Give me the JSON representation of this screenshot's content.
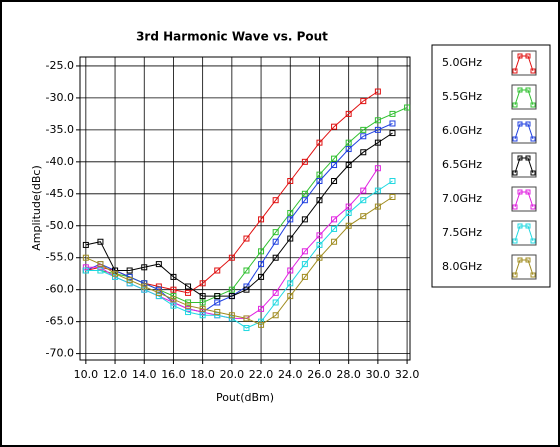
{
  "chart_data": {
    "type": "line",
    "title": "3rd Harmonic Wave vs. Pout",
    "x_label": "Pout(dBm)",
    "y_label": "Amplitude(dBc)",
    "x": [
      10,
      11,
      12,
      13,
      14,
      15,
      16,
      17,
      18,
      19,
      20,
      21,
      22,
      23,
      24,
      25,
      26,
      27,
      28,
      29,
      30,
      31,
      32
    ],
    "series": [
      {
        "name": "5.0GHz",
        "color": "#e01010",
        "values": [
          -57,
          -56.5,
          -57,
          -58,
          -59,
          -59.5,
          -60,
          -60.5,
          -59,
          -57,
          -55,
          -52,
          -49,
          -46,
          -43,
          -40,
          -37,
          -34.5,
          -32.5,
          -30.5,
          -29,
          null,
          null
        ]
      },
      {
        "name": "5.5GHz",
        "color": "#30c030",
        "values": [
          -57,
          -57,
          -57.5,
          -58,
          -59,
          -60,
          -61,
          -62,
          -62,
          -61,
          -60,
          -57,
          -54,
          -51,
          -48,
          -45,
          -42,
          -39.5,
          -37,
          -35,
          -33.5,
          -32.5,
          -31.5
        ]
      },
      {
        "name": "6.0GHz",
        "color": "#2040e0",
        "values": [
          -57,
          -56,
          -57,
          -58,
          -59,
          -60,
          -62,
          -63,
          -63.5,
          -62,
          -61,
          -59.5,
          -56,
          -52.5,
          -49,
          -46,
          -43,
          -40.5,
          -38,
          -36,
          -35,
          -34,
          null
        ]
      },
      {
        "name": "6.5GHz",
        "color": "#000000",
        "values": [
          -53,
          -52.5,
          -57,
          -57,
          -56.5,
          -56,
          -58,
          -59.5,
          -61,
          -61,
          -61,
          -60,
          -58,
          -55,
          -52,
          -49,
          -46,
          -43,
          -40.5,
          -38.5,
          -37,
          -35.5,
          null
        ]
      },
      {
        "name": "7.0GHz",
        "color": "#e020e0",
        "values": [
          -56.5,
          -56.5,
          -58,
          -59,
          -60,
          -61,
          -62,
          -63,
          -63.5,
          -64,
          -64.5,
          -64.5,
          -63,
          -60.5,
          -57,
          -54,
          -51.5,
          -49,
          -47,
          -44.5,
          -41,
          null,
          null
        ]
      },
      {
        "name": "7.5GHz",
        "color": "#20d8e0",
        "values": [
          -57,
          -57,
          -58,
          -59,
          -60,
          -61,
          -62.5,
          -63.5,
          -64,
          -64,
          -64.5,
          -66,
          -65,
          -62,
          -59,
          -56,
          -53,
          -50.5,
          -48,
          -46,
          -44.5,
          -43,
          null
        ]
      },
      {
        "name": "8.0GHz",
        "color": "#a08c20",
        "values": [
          -55,
          -56,
          -57.5,
          -58.5,
          -59.5,
          -60.5,
          -61.5,
          -62.5,
          -63,
          -63.5,
          -64,
          -64.5,
          -65.5,
          -64,
          -61,
          -58,
          -55,
          -52.5,
          -50,
          -48.5,
          -47,
          -45.5,
          null
        ]
      }
    ],
    "xlim": [
      9.6,
      32.2
    ],
    "ylim": [
      -71,
      -23.6
    ],
    "xticks": [
      {
        "value": 10,
        "label": "10.0"
      },
      {
        "value": 12,
        "label": "12.0"
      },
      {
        "value": 14,
        "label": "14.0"
      },
      {
        "value": 16,
        "label": "16.0"
      },
      {
        "value": 18,
        "label": "18.0"
      },
      {
        "value": 20,
        "label": "20.0"
      },
      {
        "value": 22,
        "label": "22.0"
      },
      {
        "value": 24,
        "label": "24.0"
      },
      {
        "value": 26,
        "label": "26.0"
      },
      {
        "value": 28,
        "label": "28.0"
      },
      {
        "value": 30,
        "label": "30.0"
      },
      {
        "value": 32,
        "label": "32.0"
      }
    ],
    "yticks": [
      {
        "value": -25,
        "label": "-25.0"
      },
      {
        "value": -30,
        "label": "-30.0"
      },
      {
        "value": -35,
        "label": "-35.0"
      },
      {
        "value": -40,
        "label": "-40.0"
      },
      {
        "value": -45,
        "label": "-45.0"
      },
      {
        "value": -50,
        "label": "-50.0"
      },
      {
        "value": -55,
        "label": "-55.0"
      },
      {
        "value": -60,
        "label": "-60.0"
      },
      {
        "value": -65,
        "label": "-65.0"
      },
      {
        "value": -70,
        "label": "-70.0"
      }
    ],
    "grid": true,
    "legend": "right"
  }
}
